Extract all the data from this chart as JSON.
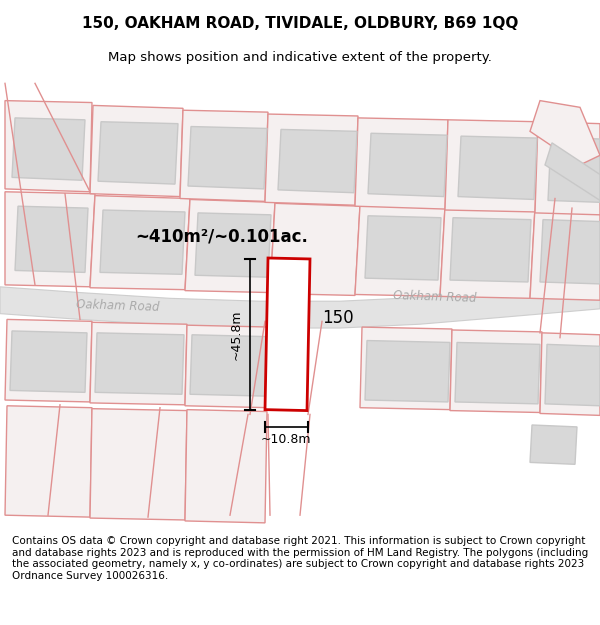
{
  "title_line1": "150, OAKHAM ROAD, TIVIDALE, OLDBURY, B69 1QQ",
  "title_line2": "Map shows position and indicative extent of the property.",
  "footer_text": "Contains OS data © Crown copyright and database right 2021. This information is subject to Crown copyright and database rights 2023 and is reproduced with the permission of HM Land Registry. The polygons (including the associated geometry, namely x, y co-ordinates) are subject to Crown copyright and database rights 2023 Ordnance Survey 100026316.",
  "area_label": "~410m²/~0.101ac.",
  "width_label": "~10.8m",
  "height_label": "~45.8m",
  "number_label": "150",
  "highlight_color": "#cc0000",
  "road_color": "#dedede",
  "road_label_color": "#aaaaaa",
  "building_fill": "#d8d8d8",
  "building_edge": "#c8c8c8",
  "plot_fill": "#f5f0f0",
  "plot_edge": "#e09090",
  "map_bg": "#f7f7f7",
  "title_fontsize": 11,
  "subtitle_fontsize": 9.5,
  "footer_fontsize": 7.5,
  "dim_fontsize": 9,
  "area_fontsize": 12,
  "number_fontsize": 12
}
